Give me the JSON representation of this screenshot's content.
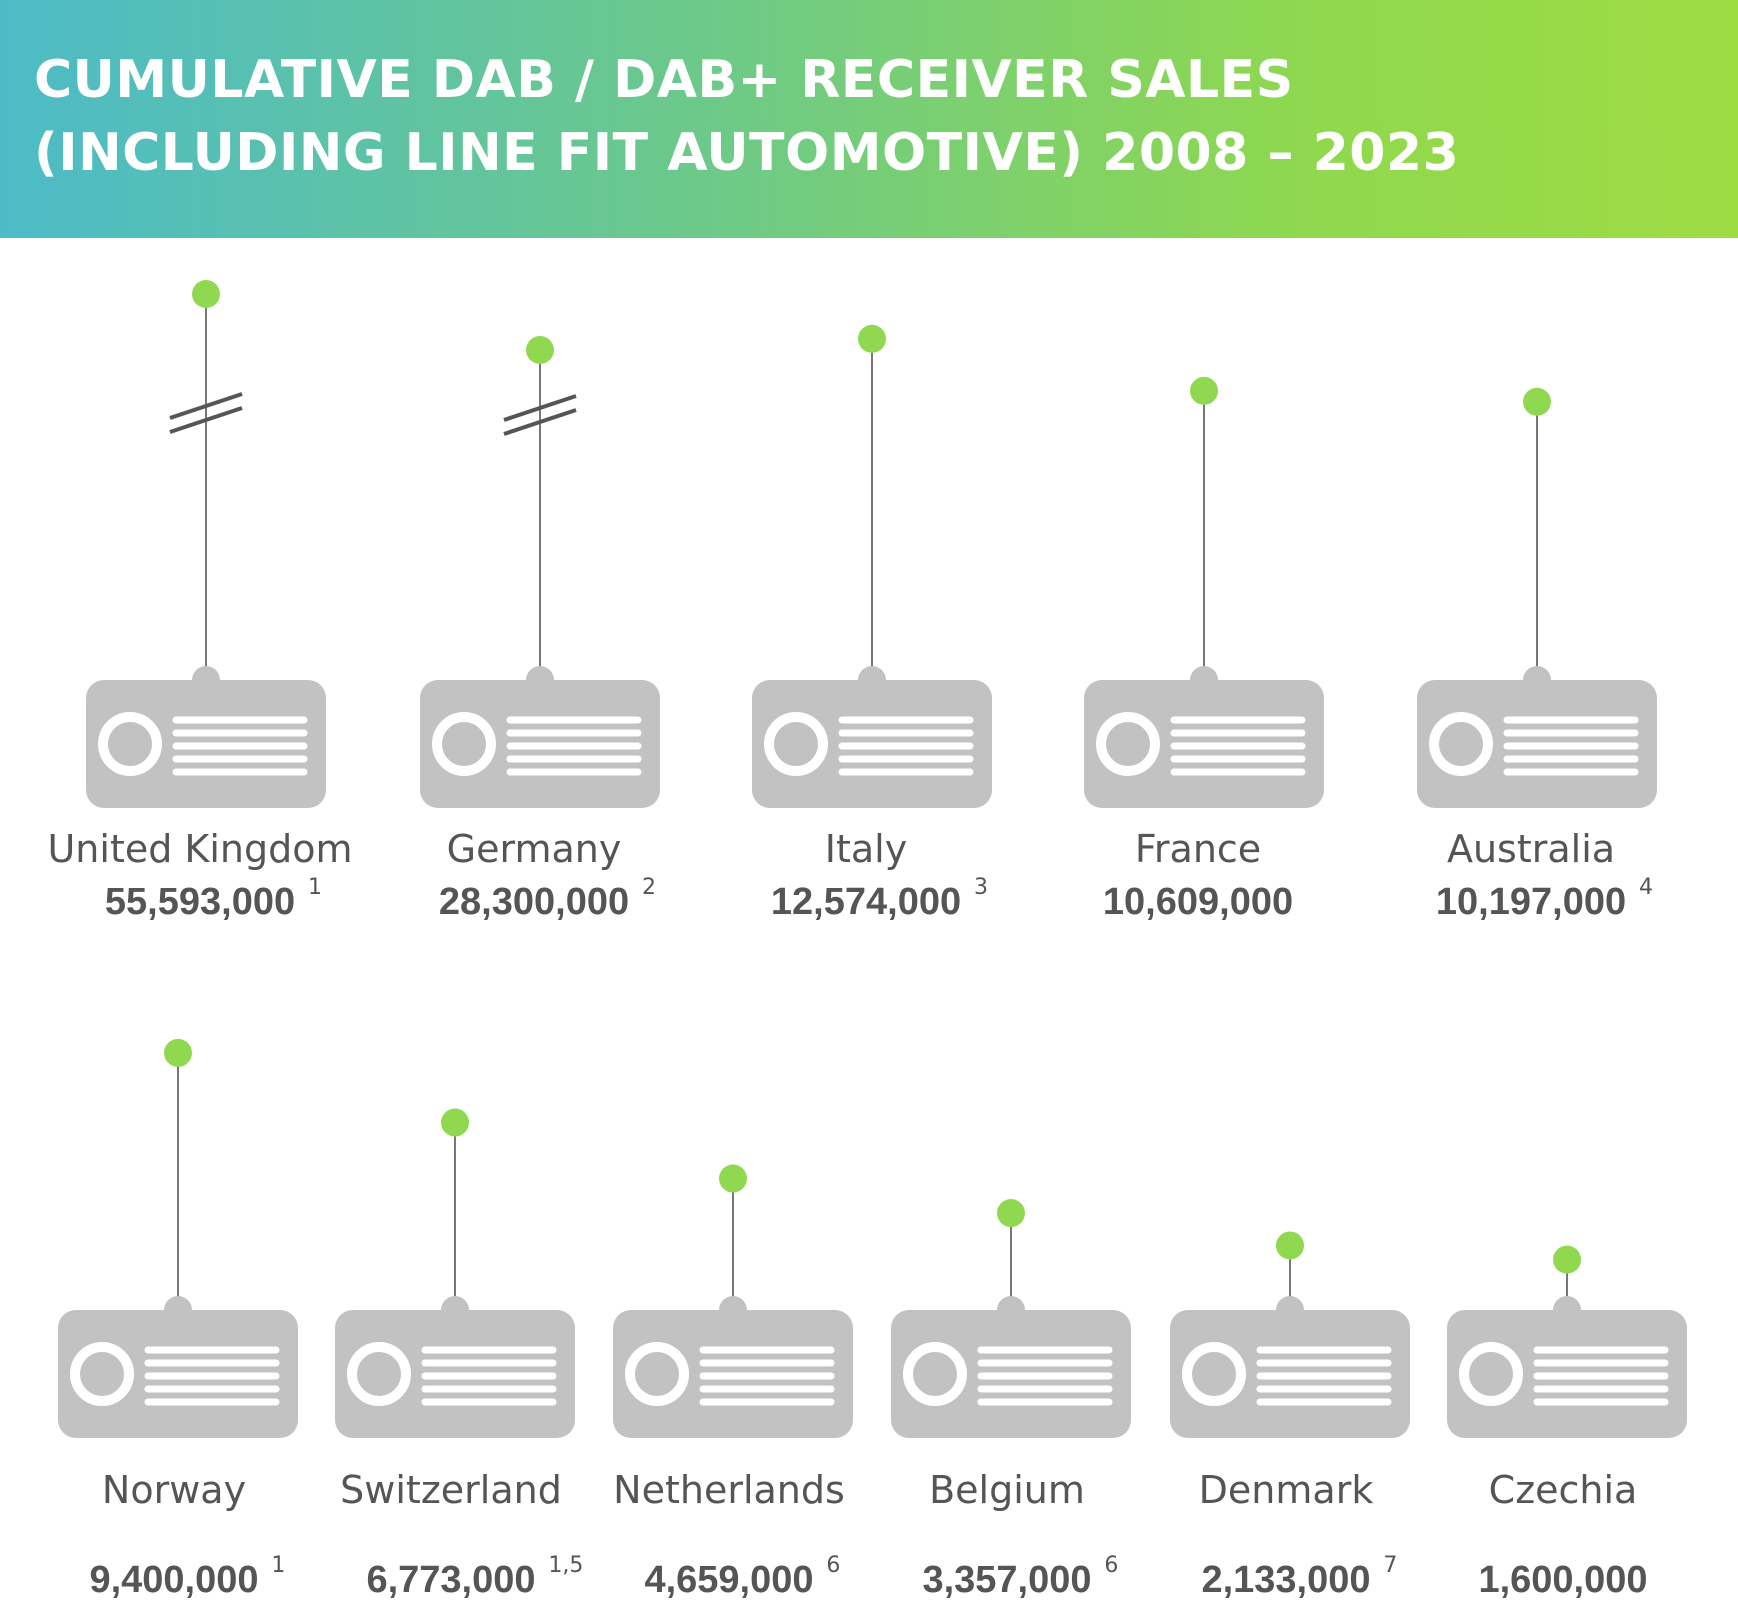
{
  "header": {
    "title_line1": "CUMULATIVE DAB / DAB+ RECEIVER SALES",
    "title_line2": "(INCLUDING LINE FIT AUTOMOTIVE) 2008 – 2023"
  },
  "colors": {
    "gradient_start": "#4dbbc7",
    "gradient_end": "#9edc43",
    "radio_body": "#c2c2c2",
    "antenna_tip": "#8fd84f",
    "text": "#555555"
  },
  "chart_data": {
    "type": "pictograph",
    "title": "CUMULATIVE DAB / DAB+ RECEIVER SALES (INCLUDING LINE FIT AUTOMOTIVE) 2008 – 2023",
    "unit_note": "antenna height proportional to value; UK and Germany antennas shown with axis break",
    "items": [
      {
        "country": "United Kingdom",
        "value": 55593000,
        "label": "55,593,000",
        "footnote": "1",
        "axis_break": true
      },
      {
        "country": "Germany",
        "value": 28300000,
        "label": "28,300,000",
        "footnote": "2",
        "axis_break": true
      },
      {
        "country": "Italy",
        "value": 12574000,
        "label": "12,574,000",
        "footnote": "3",
        "axis_break": false
      },
      {
        "country": "France",
        "value": 10609000,
        "label": "10,609,000",
        "footnote": "",
        "axis_break": false
      },
      {
        "country": "Australia",
        "value": 10197000,
        "label": "10,197,000",
        "footnote": "4",
        "axis_break": false
      },
      {
        "country": "Norway",
        "value": 9400000,
        "label": "9,400,000",
        "footnote": "1",
        "axis_break": false
      },
      {
        "country": "Switzerland",
        "value": 6773000,
        "label": "6,773,000",
        "footnote": "1,5",
        "axis_break": false
      },
      {
        "country": "Netherlands",
        "value": 4659000,
        "label": "4,659,000",
        "footnote": "6",
        "axis_break": false
      },
      {
        "country": "Belgium",
        "value": 3357000,
        "label": "3,357,000",
        "footnote": "6",
        "axis_break": false
      },
      {
        "country": "Denmark",
        "value": 2133000,
        "label": "2,133,000",
        "footnote": "7",
        "axis_break": false
      },
      {
        "country": "Czechia",
        "value": 1600000,
        "label": "1,600,000",
        "footnote": "",
        "axis_break": false
      }
    ]
  }
}
